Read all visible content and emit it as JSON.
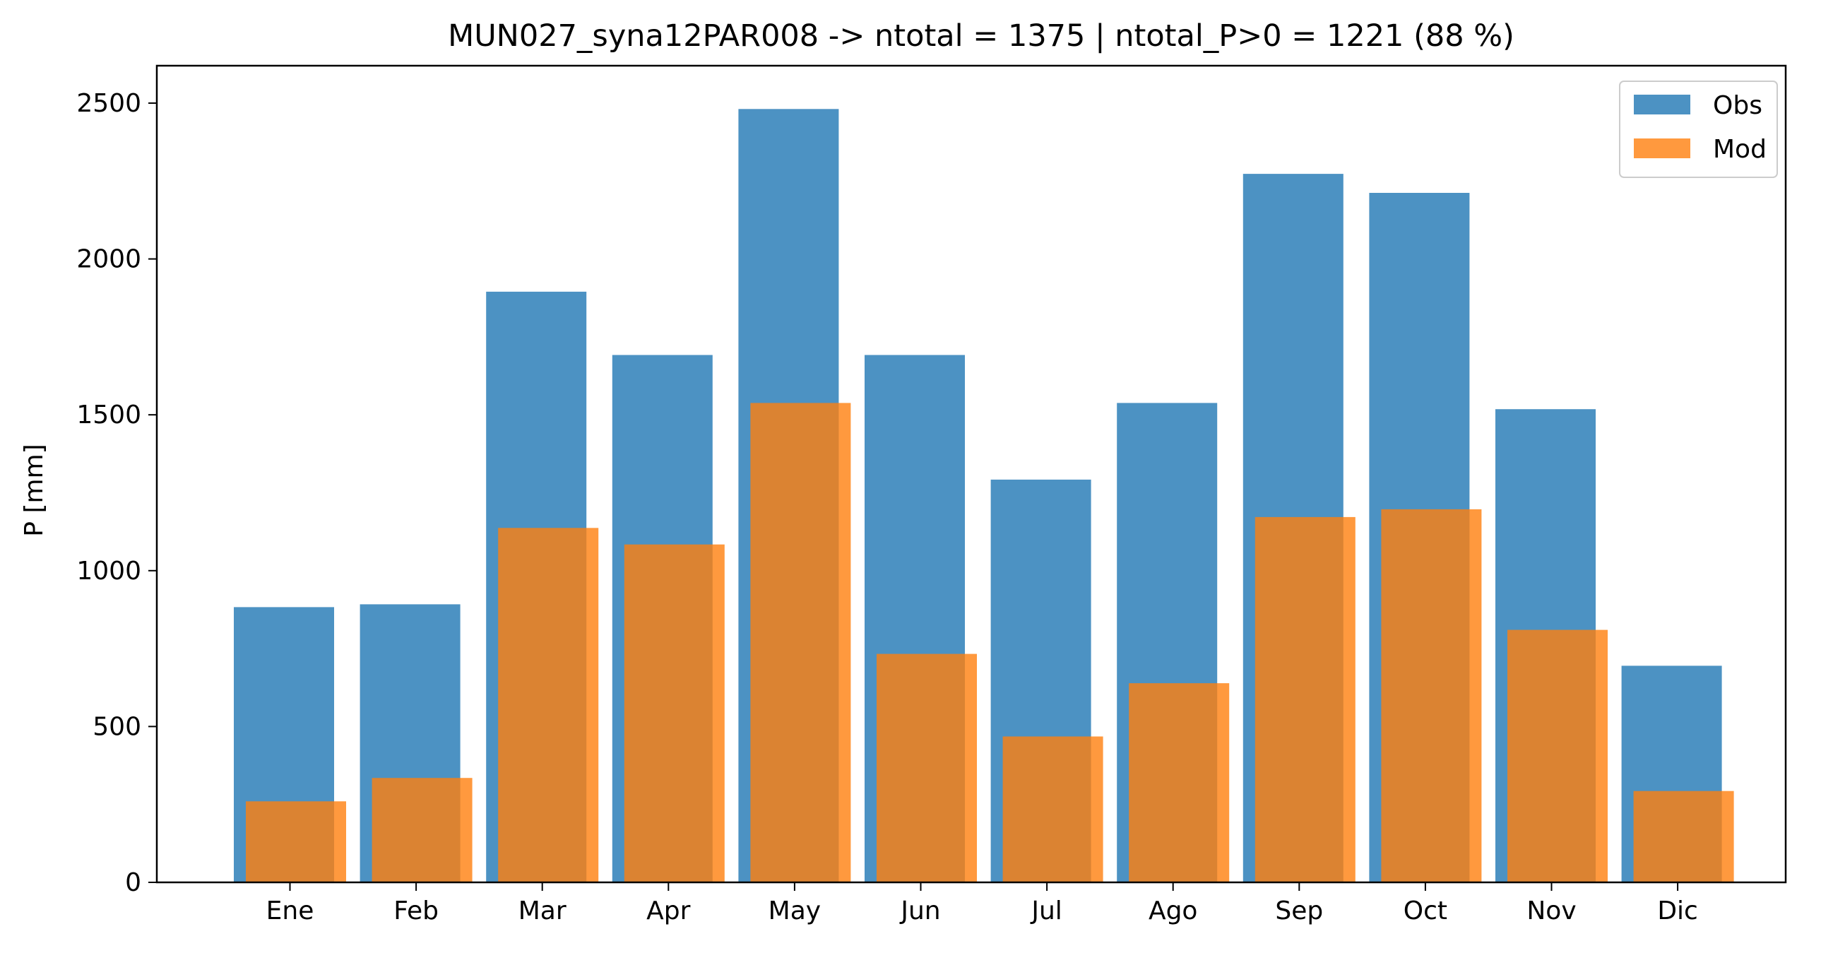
{
  "chart_data": {
    "type": "bar",
    "title": "MUN027_syna12PAR008 -> ntotal = 1375 | ntotal_P>0 = 1221 (88 %)",
    "xlabel": "",
    "ylabel": "P [mm]",
    "categories": [
      "Ene",
      "Feb",
      "Mar",
      "Apr",
      "May",
      "Jun",
      "Jul",
      "Ago",
      "Sep",
      "Oct",
      "Nov",
      "Dic"
    ],
    "series": [
      {
        "name": "Obs",
        "color": "#1f77b4",
        "values": [
          883,
          892,
          1895,
          1692,
          2481,
          1692,
          1292,
          1538,
          2273,
          2212,
          1518,
          695
        ]
      },
      {
        "name": "Mod",
        "color": "#ff7f0e",
        "values": [
          260,
          335,
          1137,
          1084,
          1538,
          733,
          468,
          639,
          1172,
          1197,
          810,
          293
        ]
      }
    ],
    "ylim": [
      0,
      2620
    ],
    "yticks": [
      0,
      500,
      1000,
      1500,
      2000,
      2500
    ],
    "legend": "top-right",
    "grid": false
  }
}
